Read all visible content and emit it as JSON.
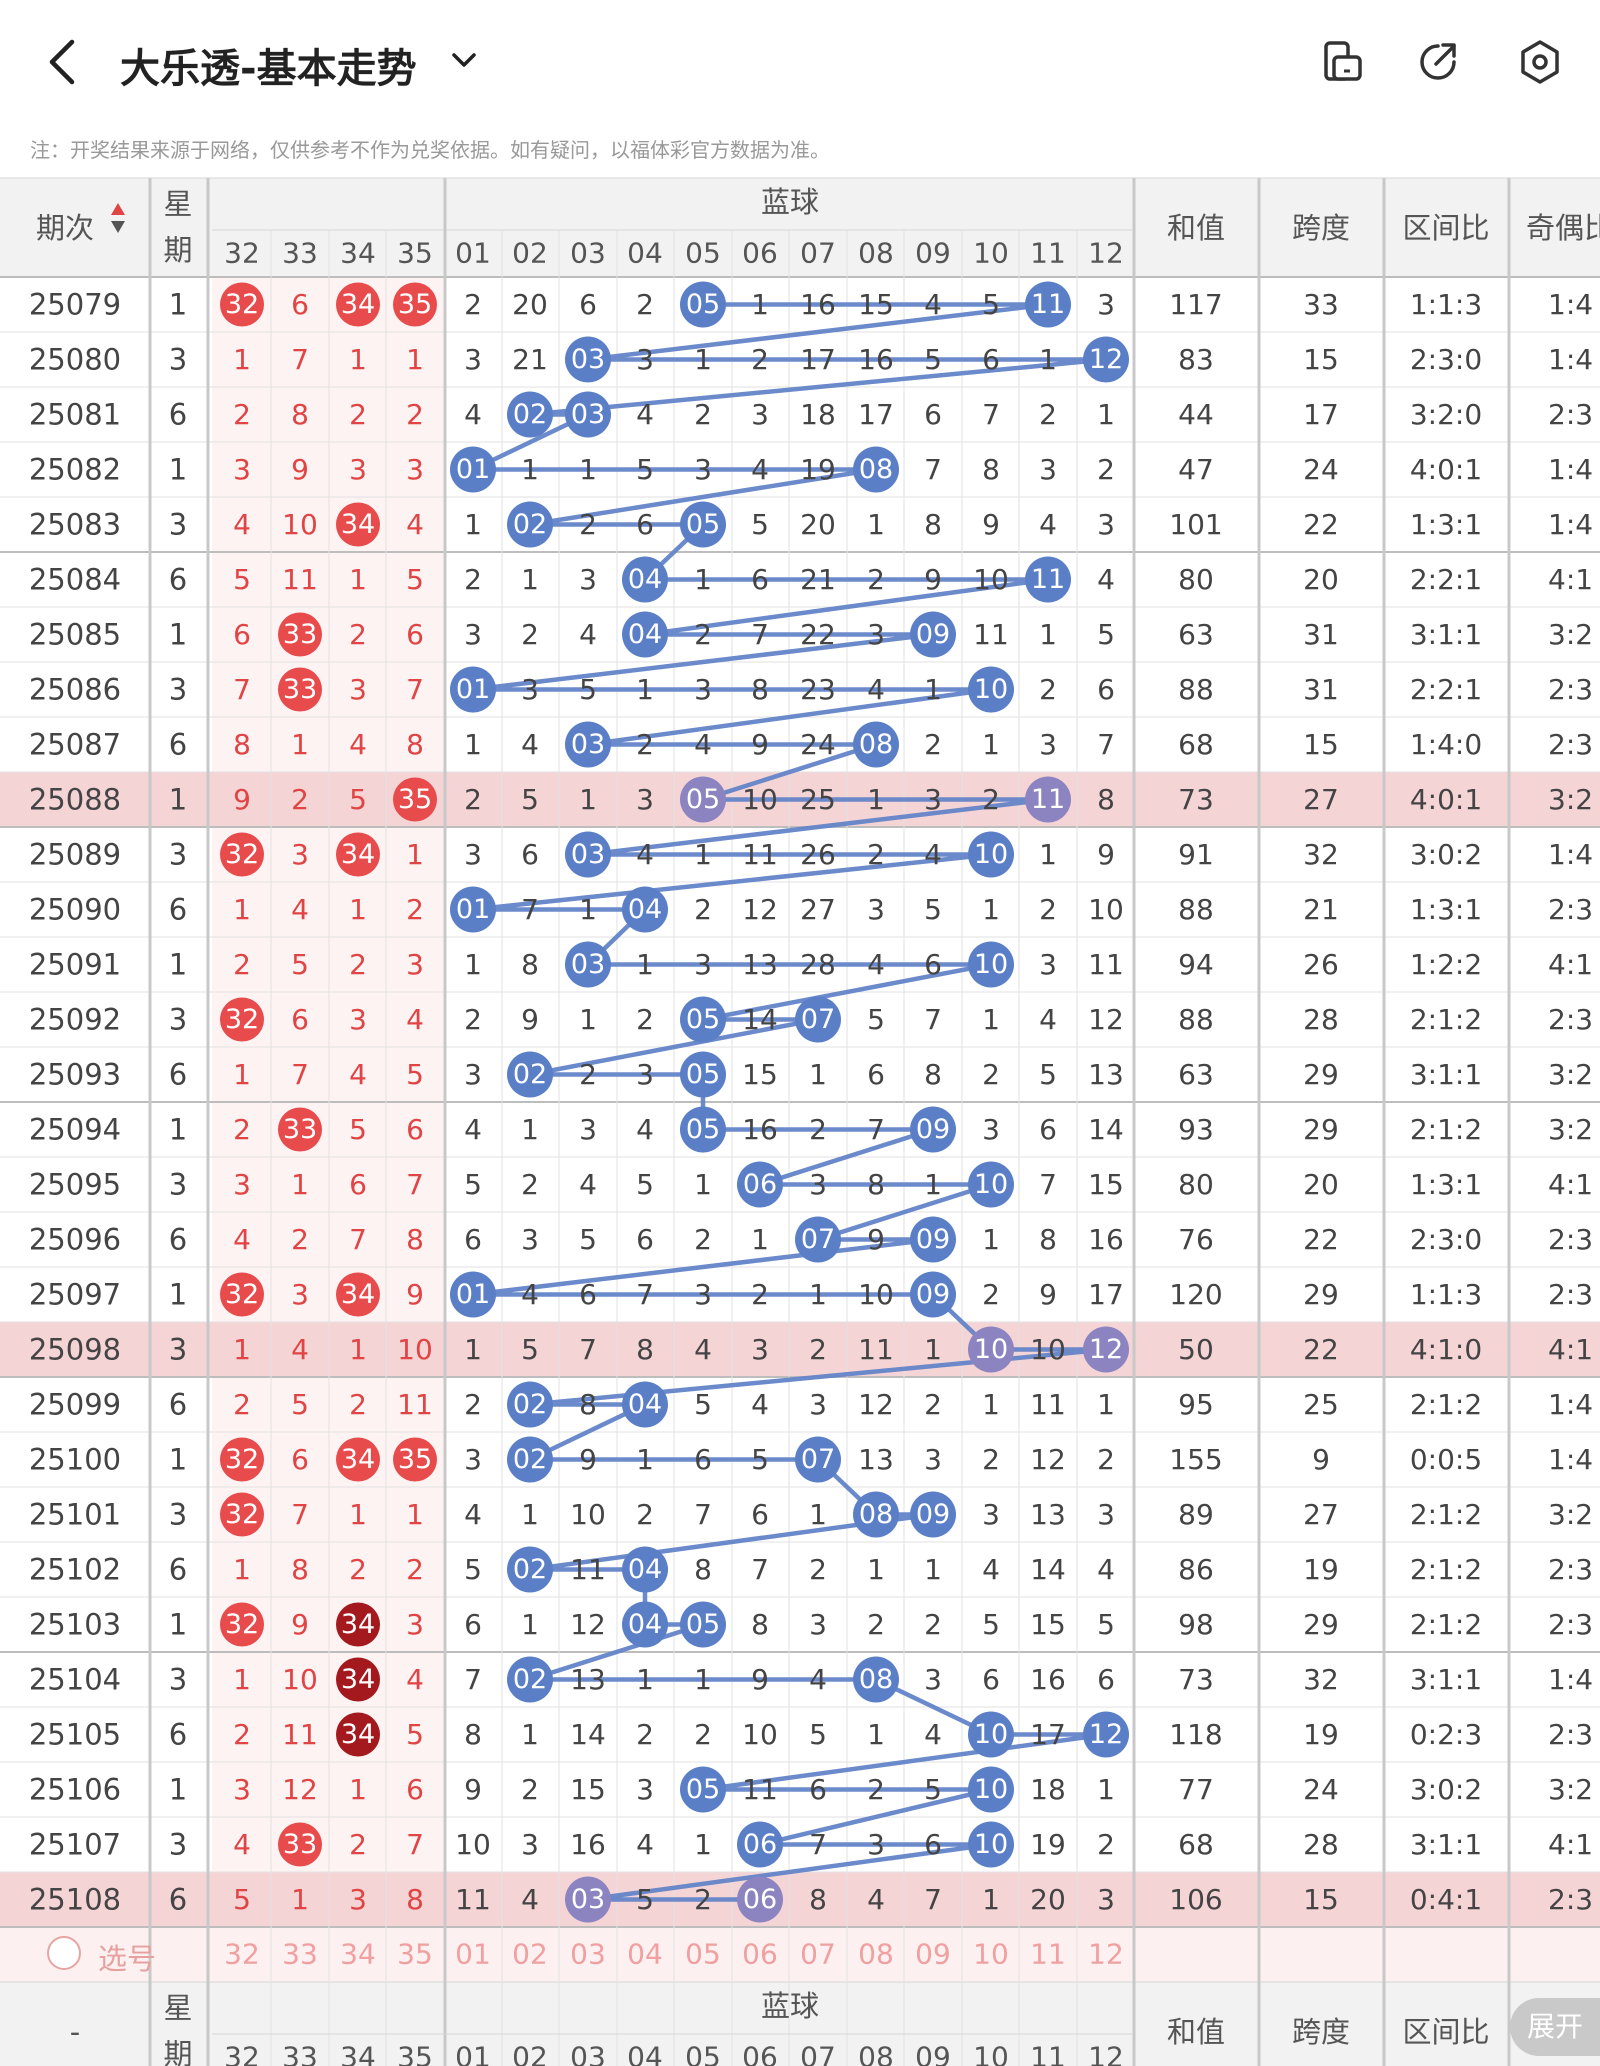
{
  "app": {
    "title": "大乐透-基本走势",
    "notice": "注：开奖结果来源于网络，仅供参考不作为兑奖依据。如有疑问，以福体彩官方数据为准。"
  },
  "icons": {
    "back": "chevron-left-icon",
    "title_dropdown": "chevron-down-icon",
    "compare": "device-compare-icon",
    "share": "share-arrow-icon",
    "settings": "hexagon-settings-icon"
  },
  "colors": {
    "red_ball": "#e84b4b",
    "dark_red_ball": "#a3191d",
    "blue_ball": "#5b7fc7",
    "blue_line": "#6384c8",
    "highlight_row": "#f5d4d6",
    "highlight_ball": "#8b84c0",
    "red_text": "#e04444",
    "pink_band": "#fdf0f0"
  },
  "table": {
    "headers": {
      "period": "期次",
      "weekday": "星期",
      "blue_group": "蓝球",
      "sum": "和值",
      "span": "跨度",
      "zone_ratio": "区间比",
      "odd_even": "奇偶比"
    },
    "red_cols": [
      "32",
      "33",
      "34",
      "35"
    ],
    "blue_cols": [
      "01",
      "02",
      "03",
      "04",
      "05",
      "06",
      "07",
      "08",
      "09",
      "10",
      "11",
      "12"
    ],
    "rows": [
      {
        "p": "25079",
        "w": "1",
        "r": [
          "32",
          "6",
          "34",
          "35"
        ],
        "rb": [
          1,
          0,
          1,
          1
        ],
        "b": [
          "2",
          "20",
          "6",
          "2",
          "05",
          "1",
          "16",
          "15",
          "4",
          "5",
          "11",
          "3"
        ],
        "bh": [
          5,
          11
        ],
        "s": "117",
        "sp": "33",
        "z": "1:1:3",
        "oe": "1:4"
      },
      {
        "p": "25080",
        "w": "3",
        "r": [
          "1",
          "7",
          "1",
          "1"
        ],
        "rb": [
          0,
          0,
          0,
          0
        ],
        "b": [
          "3",
          "21",
          "03",
          "3",
          "1",
          "2",
          "17",
          "16",
          "5",
          "6",
          "1",
          "12"
        ],
        "bh": [
          3,
          12
        ],
        "s": "83",
        "sp": "15",
        "z": "2:3:0",
        "oe": "1:4"
      },
      {
        "p": "25081",
        "w": "6",
        "r": [
          "2",
          "8",
          "2",
          "2"
        ],
        "rb": [
          0,
          0,
          0,
          0
        ],
        "b": [
          "4",
          "02",
          "03",
          "4",
          "2",
          "3",
          "18",
          "17",
          "6",
          "7",
          "2",
          "1"
        ],
        "bh": [
          2,
          3
        ],
        "s": "44",
        "sp": "17",
        "z": "3:2:0",
        "oe": "2:3"
      },
      {
        "p": "25082",
        "w": "1",
        "r": [
          "3",
          "9",
          "3",
          "3"
        ],
        "rb": [
          0,
          0,
          0,
          0
        ],
        "b": [
          "01",
          "1",
          "1",
          "5",
          "3",
          "4",
          "19",
          "08",
          "7",
          "8",
          "3",
          "2"
        ],
        "bh": [
          1,
          8
        ],
        "s": "47",
        "sp": "24",
        "z": "4:0:1",
        "oe": "1:4"
      },
      {
        "p": "25083",
        "w": "3",
        "r": [
          "4",
          "10",
          "34",
          "4"
        ],
        "rb": [
          0,
          0,
          1,
          0
        ],
        "b": [
          "1",
          "02",
          "2",
          "6",
          "05",
          "5",
          "20",
          "1",
          "8",
          "9",
          "4",
          "3"
        ],
        "bh": [
          2,
          5
        ],
        "s": "101",
        "sp": "22",
        "z": "1:3:1",
        "oe": "1:4"
      },
      {
        "p": "25084",
        "w": "6",
        "r": [
          "5",
          "11",
          "1",
          "5"
        ],
        "rb": [
          0,
          0,
          0,
          0
        ],
        "b": [
          "2",
          "1",
          "3",
          "04",
          "1",
          "6",
          "21",
          "2",
          "9",
          "10",
          "11",
          "4"
        ],
        "bh": [
          4,
          11
        ],
        "s": "80",
        "sp": "20",
        "z": "2:2:1",
        "oe": "4:1"
      },
      {
        "p": "25085",
        "w": "1",
        "r": [
          "6",
          "33",
          "2",
          "6"
        ],
        "rb": [
          0,
          1,
          0,
          0
        ],
        "b": [
          "3",
          "2",
          "4",
          "04",
          "2",
          "7",
          "22",
          "3",
          "09",
          "11",
          "1",
          "5"
        ],
        "bh": [
          4,
          9
        ],
        "s": "63",
        "sp": "31",
        "z": "3:1:1",
        "oe": "3:2"
      },
      {
        "p": "25086",
        "w": "3",
        "r": [
          "7",
          "33",
          "3",
          "7"
        ],
        "rb": [
          0,
          1,
          0,
          0
        ],
        "b": [
          "01",
          "3",
          "5",
          "1",
          "3",
          "8",
          "23",
          "4",
          "1",
          "10",
          "2",
          "6"
        ],
        "bh": [
          1,
          10
        ],
        "s": "88",
        "sp": "31",
        "z": "2:2:1",
        "oe": "2:3"
      },
      {
        "p": "25087",
        "w": "6",
        "r": [
          "8",
          "1",
          "4",
          "8"
        ],
        "rb": [
          0,
          0,
          0,
          0
        ],
        "b": [
          "1",
          "4",
          "03",
          "2",
          "4",
          "9",
          "24",
          "08",
          "2",
          "1",
          "3",
          "7"
        ],
        "bh": [
          3,
          8
        ],
        "s": "68",
        "sp": "15",
        "z": "1:4:0",
        "oe": "2:3"
      },
      {
        "p": "25088",
        "w": "1",
        "r": [
          "9",
          "2",
          "5",
          "35"
        ],
        "rb": [
          0,
          0,
          0,
          1
        ],
        "b": [
          "2",
          "5",
          "1",
          "3",
          "05",
          "10",
          "25",
          "1",
          "3",
          "2",
          "11",
          "8"
        ],
        "bh": [
          5,
          11
        ],
        "s": "73",
        "sp": "27",
        "z": "4:0:1",
        "oe": "3:2",
        "hl": 1
      },
      {
        "p": "25089",
        "w": "3",
        "r": [
          "32",
          "3",
          "34",
          "1"
        ],
        "rb": [
          1,
          0,
          1,
          0
        ],
        "b": [
          "3",
          "6",
          "03",
          "4",
          "1",
          "11",
          "26",
          "2",
          "4",
          "10",
          "1",
          "9"
        ],
        "bh": [
          3,
          10
        ],
        "s": "91",
        "sp": "32",
        "z": "3:0:2",
        "oe": "1:4"
      },
      {
        "p": "25090",
        "w": "6",
        "r": [
          "1",
          "4",
          "1",
          "2"
        ],
        "rb": [
          0,
          0,
          0,
          0
        ],
        "b": [
          "01",
          "7",
          "1",
          "04",
          "2",
          "12",
          "27",
          "3",
          "5",
          "1",
          "2",
          "10"
        ],
        "bh": [
          1,
          4
        ],
        "s": "88",
        "sp": "21",
        "z": "1:3:1",
        "oe": "2:3"
      },
      {
        "p": "25091",
        "w": "1",
        "r": [
          "2",
          "5",
          "2",
          "3"
        ],
        "rb": [
          0,
          0,
          0,
          0
        ],
        "b": [
          "1",
          "8",
          "03",
          "1",
          "3",
          "13",
          "28",
          "4",
          "6",
          "10",
          "3",
          "11"
        ],
        "bh": [
          3,
          10
        ],
        "s": "94",
        "sp": "26",
        "z": "1:2:2",
        "oe": "4:1"
      },
      {
        "p": "25092",
        "w": "3",
        "r": [
          "32",
          "6",
          "3",
          "4"
        ],
        "rb": [
          1,
          0,
          0,
          0
        ],
        "b": [
          "2",
          "9",
          "1",
          "2",
          "05",
          "14",
          "07",
          "5",
          "7",
          "1",
          "4",
          "12"
        ],
        "bh": [
          5,
          7
        ],
        "s": "88",
        "sp": "28",
        "z": "2:1:2",
        "oe": "2:3"
      },
      {
        "p": "25093",
        "w": "6",
        "r": [
          "1",
          "7",
          "4",
          "5"
        ],
        "rb": [
          0,
          0,
          0,
          0
        ],
        "b": [
          "3",
          "02",
          "2",
          "3",
          "05",
          "15",
          "1",
          "6",
          "8",
          "2",
          "5",
          "13"
        ],
        "bh": [
          2,
          5
        ],
        "s": "63",
        "sp": "29",
        "z": "3:1:1",
        "oe": "3:2"
      },
      {
        "p": "25094",
        "w": "1",
        "r": [
          "2",
          "33",
          "5",
          "6"
        ],
        "rb": [
          0,
          1,
          0,
          0
        ],
        "b": [
          "4",
          "1",
          "3",
          "4",
          "05",
          "16",
          "2",
          "7",
          "09",
          "3",
          "6",
          "14"
        ],
        "bh": [
          5,
          9
        ],
        "s": "93",
        "sp": "29",
        "z": "2:1:2",
        "oe": "3:2"
      },
      {
        "p": "25095",
        "w": "3",
        "r": [
          "3",
          "1",
          "6",
          "7"
        ],
        "rb": [
          0,
          0,
          0,
          0
        ],
        "b": [
          "5",
          "2",
          "4",
          "5",
          "1",
          "06",
          "3",
          "8",
          "1",
          "10",
          "7",
          "15"
        ],
        "bh": [
          6,
          10
        ],
        "s": "80",
        "sp": "20",
        "z": "1:3:1",
        "oe": "4:1"
      },
      {
        "p": "25096",
        "w": "6",
        "r": [
          "4",
          "2",
          "7",
          "8"
        ],
        "rb": [
          0,
          0,
          0,
          0
        ],
        "b": [
          "6",
          "3",
          "5",
          "6",
          "2",
          "1",
          "07",
          "9",
          "09",
          "1",
          "8",
          "16"
        ],
        "bh": [
          7,
          9
        ],
        "s": "76",
        "sp": "22",
        "z": "2:3:0",
        "oe": "2:3"
      },
      {
        "p": "25097",
        "w": "1",
        "r": [
          "32",
          "3",
          "34",
          "9"
        ],
        "rb": [
          1,
          0,
          1,
          0
        ],
        "b": [
          "01",
          "4",
          "6",
          "7",
          "3",
          "2",
          "1",
          "10",
          "09",
          "2",
          "9",
          "17"
        ],
        "bh": [
          1,
          9
        ],
        "s": "120",
        "sp": "29",
        "z": "1:1:3",
        "oe": "2:3"
      },
      {
        "p": "25098",
        "w": "3",
        "r": [
          "1",
          "4",
          "1",
          "10"
        ],
        "rb": [
          0,
          0,
          0,
          0
        ],
        "b": [
          "1",
          "5",
          "7",
          "8",
          "4",
          "3",
          "2",
          "11",
          "1",
          "10",
          "10",
          "12"
        ],
        "bh": [
          10,
          12
        ],
        "s": "50",
        "sp": "22",
        "z": "4:1:0",
        "oe": "4:1",
        "hl": 1
      },
      {
        "p": "25099",
        "w": "6",
        "r": [
          "2",
          "5",
          "2",
          "11"
        ],
        "rb": [
          0,
          0,
          0,
          0
        ],
        "b": [
          "2",
          "02",
          "8",
          "04",
          "5",
          "4",
          "3",
          "12",
          "2",
          "1",
          "11",
          "1"
        ],
        "bh": [
          2,
          4
        ],
        "s": "95",
        "sp": "25",
        "z": "2:1:2",
        "oe": "1:4"
      },
      {
        "p": "25100",
        "w": "1",
        "r": [
          "32",
          "6",
          "34",
          "35"
        ],
        "rb": [
          1,
          0,
          1,
          1
        ],
        "b": [
          "3",
          "02",
          "9",
          "1",
          "6",
          "5",
          "07",
          "13",
          "3",
          "2",
          "12",
          "2"
        ],
        "bh": [
          2,
          7
        ],
        "s": "155",
        "sp": "9",
        "z": "0:0:5",
        "oe": "1:4"
      },
      {
        "p": "25101",
        "w": "3",
        "r": [
          "32",
          "7",
          "1",
          "1"
        ],
        "rb": [
          1,
          0,
          0,
          0
        ],
        "b": [
          "4",
          "1",
          "10",
          "2",
          "7",
          "6",
          "1",
          "08",
          "09",
          "3",
          "13",
          "3"
        ],
        "bh": [
          8,
          9
        ],
        "s": "89",
        "sp": "27",
        "z": "2:1:2",
        "oe": "3:2"
      },
      {
        "p": "25102",
        "w": "6",
        "r": [
          "1",
          "8",
          "2",
          "2"
        ],
        "rb": [
          0,
          0,
          0,
          0
        ],
        "b": [
          "5",
          "02",
          "11",
          "04",
          "8",
          "7",
          "2",
          "1",
          "1",
          "4",
          "14",
          "4"
        ],
        "bh": [
          2,
          4
        ],
        "s": "86",
        "sp": "19",
        "z": "2:1:2",
        "oe": "2:3"
      },
      {
        "p": "25103",
        "w": "1",
        "r": [
          "32",
          "9",
          "34",
          "3"
        ],
        "rb": [
          1,
          0,
          2,
          0
        ],
        "b": [
          "6",
          "1",
          "12",
          "04",
          "05",
          "8",
          "3",
          "2",
          "2",
          "5",
          "15",
          "5"
        ],
        "bh": [
          4,
          5
        ],
        "s": "98",
        "sp": "29",
        "z": "2:1:2",
        "oe": "2:3"
      },
      {
        "p": "25104",
        "w": "3",
        "r": [
          "1",
          "10",
          "34",
          "4"
        ],
        "rb": [
          0,
          0,
          2,
          0
        ],
        "b": [
          "7",
          "02",
          "13",
          "1",
          "1",
          "9",
          "4",
          "08",
          "3",
          "6",
          "16",
          "6"
        ],
        "bh": [
          2,
          8
        ],
        "s": "73",
        "sp": "32",
        "z": "3:1:1",
        "oe": "1:4"
      },
      {
        "p": "25105",
        "w": "6",
        "r": [
          "2",
          "11",
          "34",
          "5"
        ],
        "rb": [
          0,
          0,
          2,
          0
        ],
        "b": [
          "8",
          "1",
          "14",
          "2",
          "2",
          "10",
          "5",
          "1",
          "4",
          "10",
          "17",
          "12"
        ],
        "bh": [
          10,
          12
        ],
        "s": "118",
        "sp": "19",
        "z": "0:2:3",
        "oe": "2:3"
      },
      {
        "p": "25106",
        "w": "1",
        "r": [
          "3",
          "12",
          "1",
          "6"
        ],
        "rb": [
          0,
          0,
          0,
          0
        ],
        "b": [
          "9",
          "2",
          "15",
          "3",
          "05",
          "11",
          "6",
          "2",
          "5",
          "10",
          "18",
          "1"
        ],
        "bh": [
          5,
          10
        ],
        "s": "77",
        "sp": "24",
        "z": "3:0:2",
        "oe": "3:2"
      },
      {
        "p": "25107",
        "w": "3",
        "r": [
          "4",
          "33",
          "2",
          "7"
        ],
        "rb": [
          0,
          1,
          0,
          0
        ],
        "b": [
          "10",
          "3",
          "16",
          "4",
          "1",
          "06",
          "7",
          "3",
          "6",
          "10",
          "19",
          "2"
        ],
        "bh": [
          6,
          10
        ],
        "s": "68",
        "sp": "28",
        "z": "3:1:1",
        "oe": "4:1"
      },
      {
        "p": "25108",
        "w": "6",
        "r": [
          "5",
          "1",
          "3",
          "8"
        ],
        "rb": [
          0,
          0,
          0,
          0
        ],
        "b": [
          "11",
          "4",
          "03",
          "5",
          "2",
          "06",
          "8",
          "4",
          "7",
          "1",
          "20",
          "3"
        ],
        "bh": [
          3,
          6
        ],
        "s": "106",
        "sp": "15",
        "z": "0:4:1",
        "oe": "2:3",
        "hl": 1
      }
    ],
    "select_label": "选号",
    "footer_period": "-",
    "footer_weekday": "星期"
  },
  "expand_button": "展开"
}
